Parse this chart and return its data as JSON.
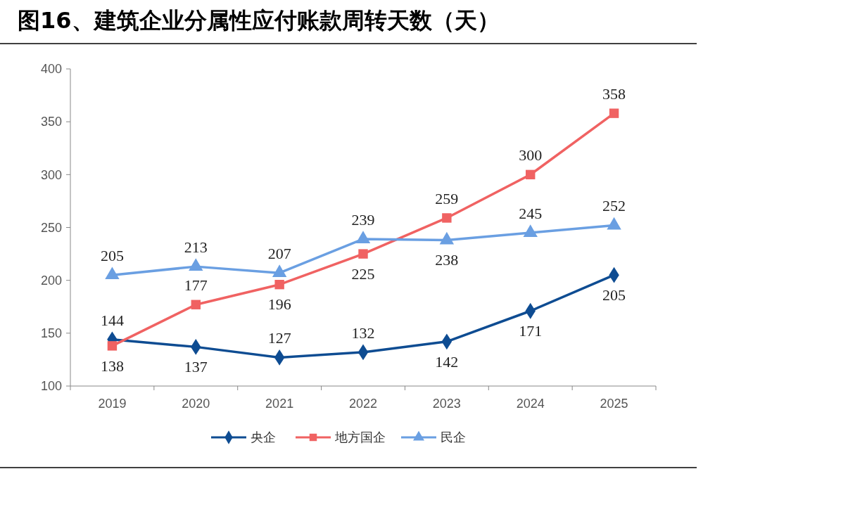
{
  "chart_data": {
    "type": "line",
    "title": "图16、建筑企业分属性应付账款周转天数（天）",
    "categories": [
      "2019",
      "2020",
      "2021",
      "2022",
      "2023",
      "2024",
      "2025"
    ],
    "series": [
      {
        "name": "央企",
        "color": "#0e4c92",
        "marker": "diamond",
        "values": [
          144,
          137,
          127,
          132,
          142,
          171,
          205
        ]
      },
      {
        "name": "地方国企",
        "color": "#f06262",
        "marker": "square",
        "values": [
          138,
          177,
          196,
          225,
          259,
          300,
          358
        ]
      },
      {
        "name": "民企",
        "color": "#6a9fe2",
        "marker": "triangle",
        "values": [
          205,
          213,
          207,
          239,
          238,
          245,
          252
        ]
      }
    ],
    "ylim": [
      100,
      400
    ],
    "yticks": [
      100,
      150,
      200,
      250,
      300,
      350,
      400
    ],
    "grid": false,
    "legend": "bottom",
    "data_labels": true
  }
}
